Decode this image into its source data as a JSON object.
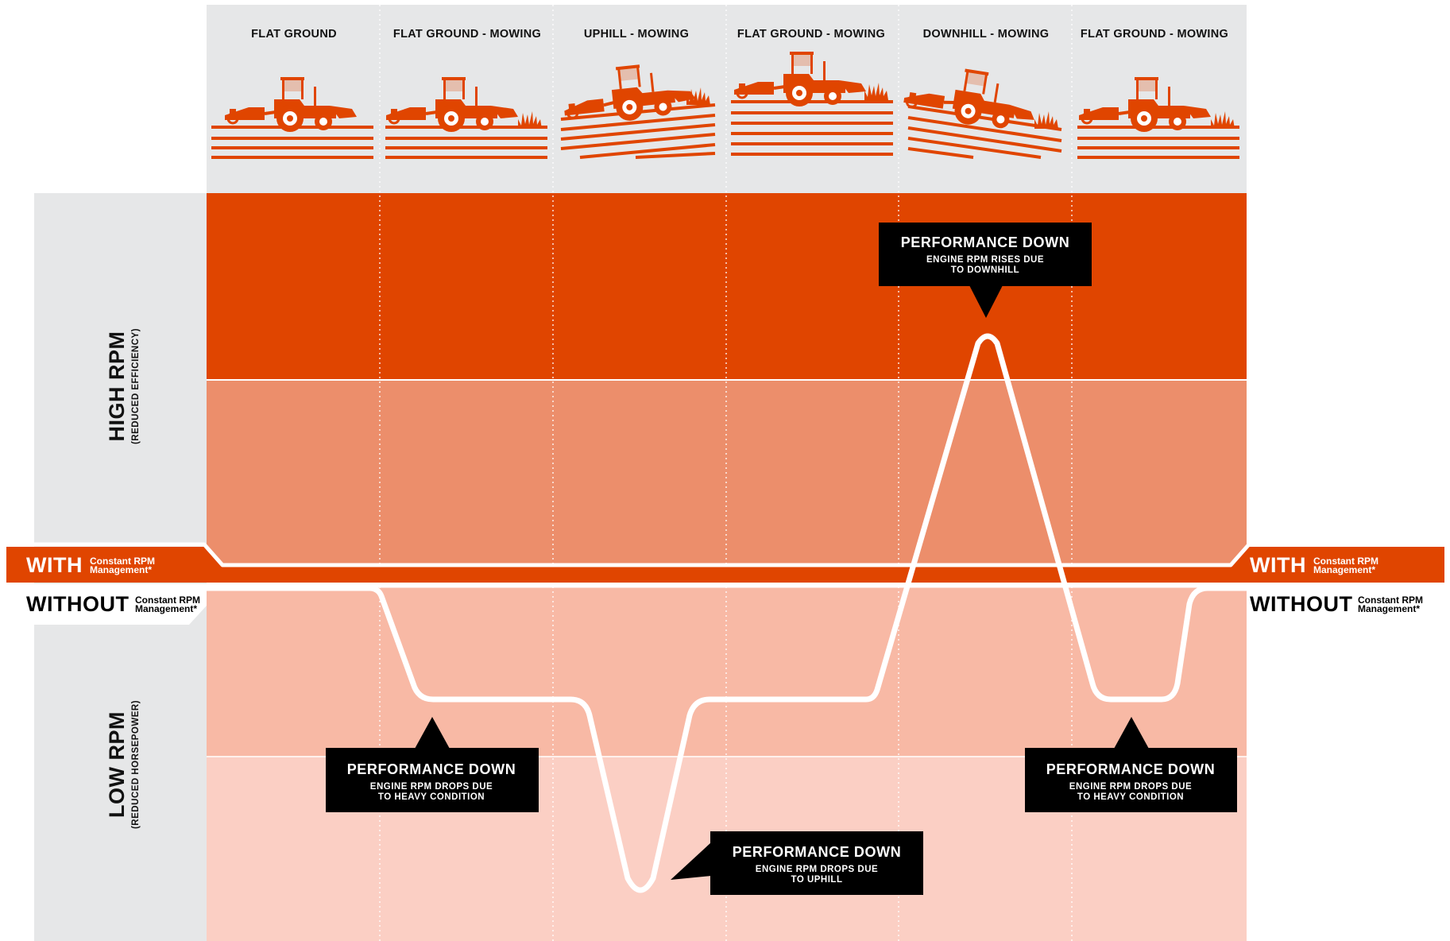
{
  "colors": {
    "header_bg": "#e6e7e8",
    "high_zone": "#e04500",
    "upper_mid_zone": "#ec8e6b",
    "lower_mid_zone": "#f8b9a5",
    "low_zone": "#fbcfc4",
    "accent": "#e04500",
    "callout_bg": "#000000",
    "curve": "#ffffff"
  },
  "columns": [
    {
      "label": "FLAT GROUND",
      "terrain": "flat",
      "grass": false
    },
    {
      "label": "FLAT GROUND - MOWING",
      "terrain": "flat",
      "grass": true
    },
    {
      "label": "UPHILL - MOWING",
      "terrain": "uphill",
      "grass": true
    },
    {
      "label": "FLAT GROUND - MOWING",
      "terrain": "flat-raised",
      "grass": true
    },
    {
      "label": "DOWNHILL - MOWING",
      "terrain": "downhill",
      "grass": true
    },
    {
      "label": "FLAT GROUND - MOWING",
      "terrain": "flat",
      "grass": true
    }
  ],
  "axis": {
    "high": {
      "title": "HIGH RPM",
      "subtitle": "(REDUCED EFFICIENCY)"
    },
    "low": {
      "title": "LOW RPM",
      "subtitle": "(REDUCED HORSEPOWER)"
    }
  },
  "bands": {
    "with": {
      "main": "WITH",
      "line1": "Constant RPM",
      "line2": "Management*"
    },
    "without": {
      "main": "WITHOUT",
      "line1": "Constant RPM",
      "line2": "Management*"
    }
  },
  "callouts": [
    {
      "title": "PERFORMANCE DOWN",
      "line1": "ENGINE RPM RISES DUE",
      "line2": "TO DOWNHILL",
      "pointer": "down"
    },
    {
      "title": "PERFORMANCE DOWN",
      "line1": "ENGINE RPM DROPS DUE",
      "line2": "TO HEAVY CONDITION",
      "pointer": "up"
    },
    {
      "title": "PERFORMANCE DOWN",
      "line1": "ENGINE RPM DROPS DUE",
      "line2": "TO UPHILL",
      "pointer": "left"
    },
    {
      "title": "PERFORMANCE DOWN",
      "line1": "ENGINE RPM DROPS DUE",
      "line2": "TO HEAVY CONDITION",
      "pointer": "up"
    }
  ]
}
